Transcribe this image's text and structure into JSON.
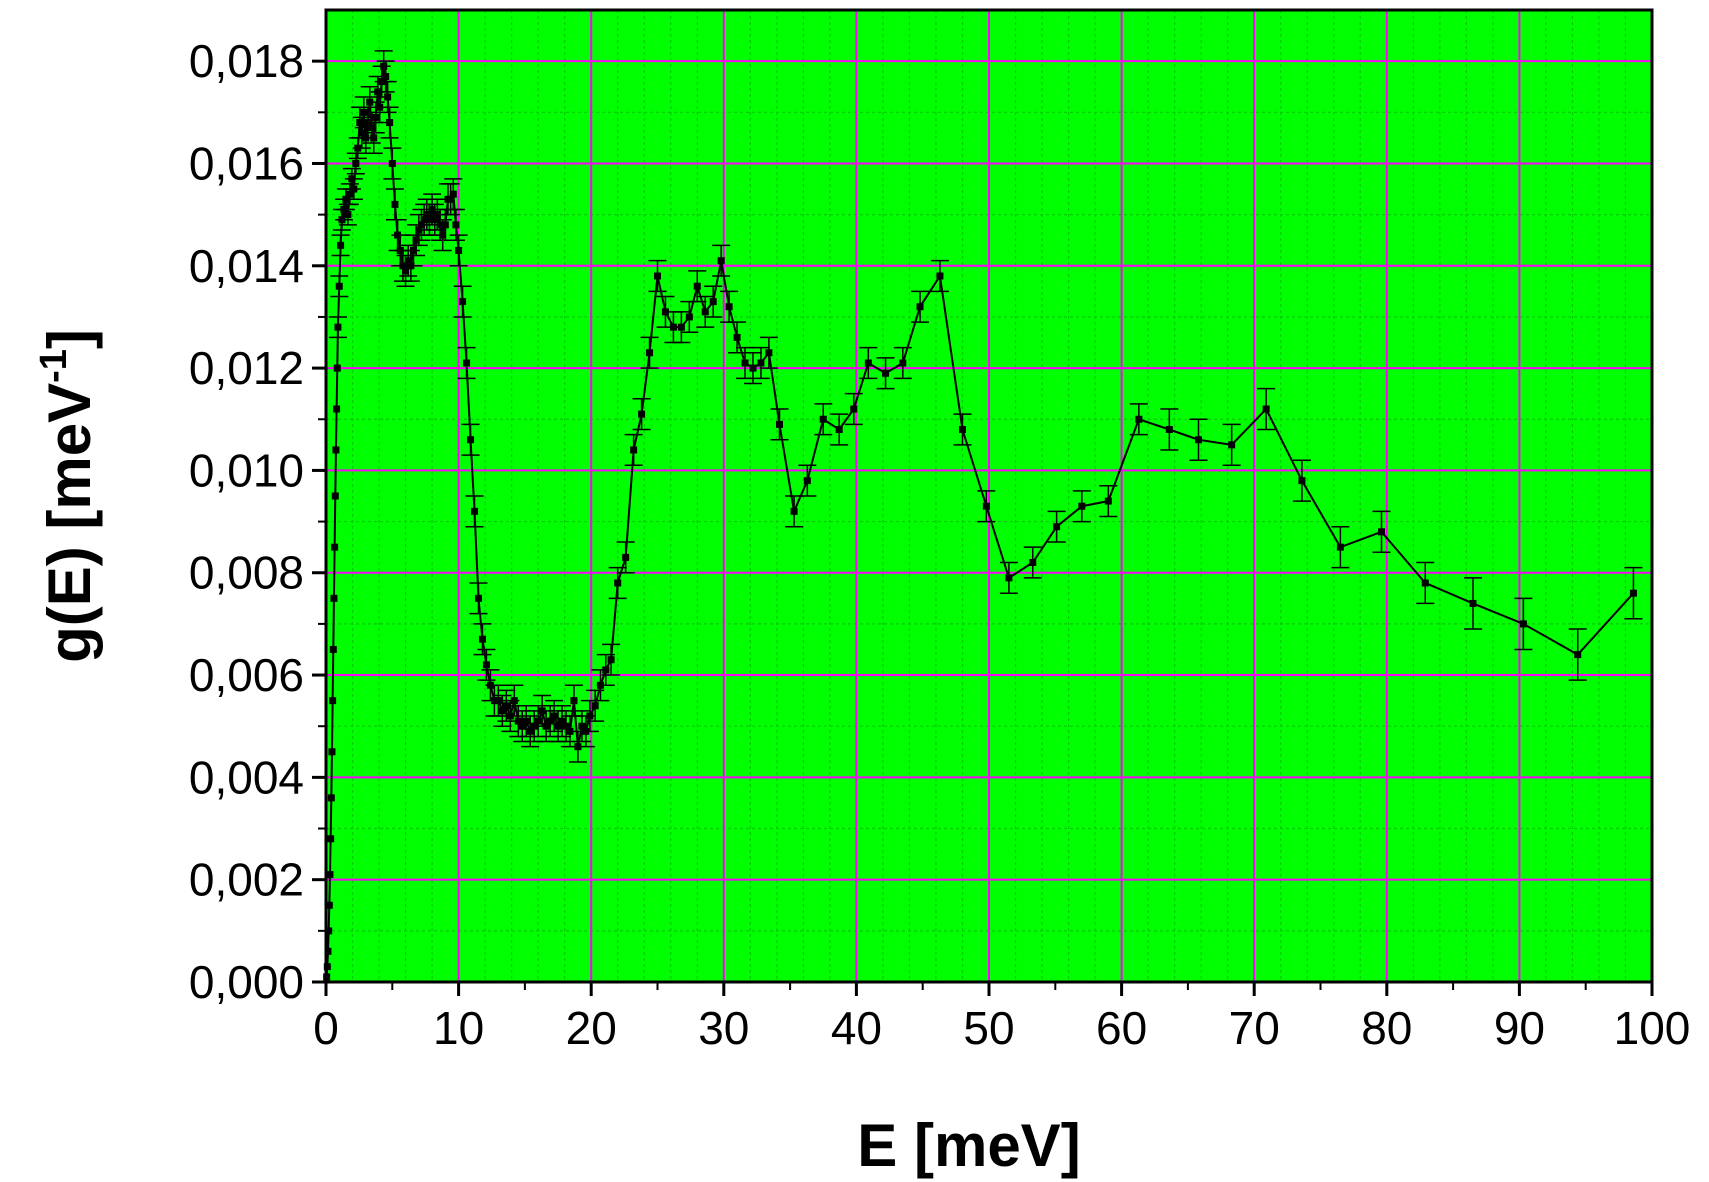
{
  "chart_data": {
    "type": "scatter",
    "xlabel": "E [meV]",
    "ylabel": "g(E) [meV-1]",
    "ylabel_parts": {
      "main": "g(E) [meV",
      "sup": "-1",
      "close": "]"
    },
    "xlim": [
      0,
      100
    ],
    "ylim": [
      0,
      0.019
    ],
    "x_ticks": [
      0,
      10,
      20,
      30,
      40,
      50,
      60,
      70,
      80,
      90,
      100
    ],
    "x_tick_labels": [
      "0",
      "10",
      "20",
      "30",
      "40",
      "50",
      "60",
      "70",
      "80",
      "90",
      "100"
    ],
    "y_ticks": [
      0,
      0.002,
      0.004,
      0.006,
      0.008,
      0.01,
      0.012,
      0.014,
      0.016,
      0.018
    ],
    "y_tick_labels": [
      "0,000",
      "0,002",
      "0,004",
      "0,006",
      "0,008",
      "0,010",
      "0,012",
      "0,014",
      "0,016",
      "0,018"
    ],
    "grid": {
      "major": true,
      "minor": true,
      "minor_x_step": 2,
      "minor_y_step": 0.001
    },
    "colors": {
      "major_grid": "#ff00ff",
      "minor_grid": "#00cc00",
      "background": "#00ff00",
      "data": "#000000"
    },
    "series": [
      {
        "points": [
          [
            0.05,
            0.0001,
            0
          ],
          [
            0.1,
            0.0003,
            0
          ],
          [
            0.15,
            0.0006,
            0
          ],
          [
            0.2,
            0.001,
            0
          ],
          [
            0.25,
            0.0015,
            0
          ],
          [
            0.3,
            0.0021,
            0
          ],
          [
            0.35,
            0.0028,
            0
          ],
          [
            0.4,
            0.0036,
            0
          ],
          [
            0.45,
            0.0045,
            0
          ],
          [
            0.5,
            0.0055,
            0
          ],
          [
            0.55,
            0.0065,
            0
          ],
          [
            0.6,
            0.0075,
            0
          ],
          [
            0.65,
            0.0085,
            0
          ],
          [
            0.7,
            0.0095,
            0
          ],
          [
            0.75,
            0.0104,
            0
          ],
          [
            0.8,
            0.0112,
            0
          ],
          [
            0.85,
            0.012,
            0
          ],
          [
            0.9,
            0.0128,
            0.0002
          ],
          [
            1.0,
            0.0136,
            0.0002
          ],
          [
            1.1,
            0.0144,
            0.0002
          ],
          [
            1.2,
            0.0149,
            0.0002
          ],
          [
            1.35,
            0.0151,
            0.0002
          ],
          [
            1.5,
            0.0153,
            0.0002
          ],
          [
            1.65,
            0.015,
            0.0002
          ],
          [
            1.8,
            0.0154,
            0.0002
          ],
          [
            1.95,
            0.0157,
            0.0002
          ],
          [
            2.1,
            0.0155,
            0.0002
          ],
          [
            2.25,
            0.016,
            0.0002
          ],
          [
            2.4,
            0.0163,
            0.0002
          ],
          [
            2.55,
            0.0168,
            0.0003
          ],
          [
            2.7,
            0.0166,
            0.0003
          ],
          [
            2.85,
            0.017,
            0.0003
          ],
          [
            3.0,
            0.0165,
            0.0003
          ],
          [
            3.15,
            0.0168,
            0.0003
          ],
          [
            3.3,
            0.0172,
            0.0003
          ],
          [
            3.45,
            0.0167,
            0.0003
          ],
          [
            3.6,
            0.0165,
            0.0003
          ],
          [
            3.75,
            0.0169,
            0.0003
          ],
          [
            3.9,
            0.0174,
            0.0003
          ],
          [
            4.05,
            0.0171,
            0.0003
          ],
          [
            4.2,
            0.0176,
            0.0003
          ],
          [
            4.35,
            0.0179,
            0.0003
          ],
          [
            4.5,
            0.0177,
            0.0003
          ],
          [
            4.65,
            0.0173,
            0.0003
          ],
          [
            4.8,
            0.0168,
            0.0003
          ],
          [
            5.0,
            0.016,
            0.0003
          ],
          [
            5.2,
            0.0152,
            0.0003
          ],
          [
            5.4,
            0.0146,
            0.0003
          ],
          [
            5.6,
            0.0143,
            0.0003
          ],
          [
            5.8,
            0.014,
            0.0003
          ],
          [
            6.0,
            0.0139,
            0.0003
          ],
          [
            6.2,
            0.0141,
            0.0003
          ],
          [
            6.4,
            0.014,
            0.0003
          ],
          [
            6.6,
            0.0143,
            0.0003
          ],
          [
            6.8,
            0.0145,
            0.0003
          ],
          [
            7.0,
            0.0147,
            0.0003
          ],
          [
            7.2,
            0.0148,
            0.0003
          ],
          [
            7.4,
            0.0149,
            0.0003
          ],
          [
            7.6,
            0.015,
            0.0003
          ],
          [
            7.8,
            0.0149,
            0.0003
          ],
          [
            8.0,
            0.0151,
            0.0003
          ],
          [
            8.2,
            0.0149,
            0.0003
          ],
          [
            8.4,
            0.015,
            0.0003
          ],
          [
            8.6,
            0.0148,
            0.0003
          ],
          [
            8.8,
            0.0146,
            0.0003
          ],
          [
            9.0,
            0.0148,
            0.0003
          ],
          [
            9.2,
            0.0153,
            0.0003
          ],
          [
            9.4,
            0.0153,
            0.0003
          ],
          [
            9.6,
            0.0154,
            0.0003
          ],
          [
            9.8,
            0.0148,
            0.0003
          ],
          [
            10.0,
            0.0143,
            0.0003
          ],
          [
            10.3,
            0.0133,
            0.0003
          ],
          [
            10.6,
            0.0121,
            0.0003
          ],
          [
            10.9,
            0.0106,
            0.0003
          ],
          [
            11.2,
            0.0092,
            0.0003
          ],
          [
            11.5,
            0.0075,
            0.0003
          ],
          [
            11.8,
            0.0067,
            0.0003
          ],
          [
            12.1,
            0.0062,
            0.0003
          ],
          [
            12.4,
            0.0058,
            0.0003
          ],
          [
            12.7,
            0.0055,
            0.0003
          ],
          [
            13.0,
            0.0055,
            0.0003
          ],
          [
            13.3,
            0.0053,
            0.0003
          ],
          [
            13.6,
            0.0054,
            0.0003
          ],
          [
            13.9,
            0.0052,
            0.0003
          ],
          [
            14.2,
            0.0055,
            0.0003
          ],
          [
            14.5,
            0.0051,
            0.0003
          ],
          [
            14.8,
            0.005,
            0.0003
          ],
          [
            15.1,
            0.0051,
            0.0003
          ],
          [
            15.4,
            0.0049,
            0.0003
          ],
          [
            15.7,
            0.005,
            0.0003
          ],
          [
            16.0,
            0.0051,
            0.0003
          ],
          [
            16.3,
            0.0053,
            0.0003
          ],
          [
            16.6,
            0.005,
            0.0003
          ],
          [
            16.9,
            0.0051,
            0.0003
          ],
          [
            17.2,
            0.0052,
            0.0003
          ],
          [
            17.5,
            0.005,
            0.0003
          ],
          [
            17.8,
            0.0051,
            0.0003
          ],
          [
            18.1,
            0.005,
            0.0003
          ],
          [
            18.4,
            0.0049,
            0.0003
          ],
          [
            18.7,
            0.0055,
            0.0003
          ],
          [
            19.0,
            0.0046,
            0.0003
          ],
          [
            19.3,
            0.005,
            0.0003
          ],
          [
            19.6,
            0.0049,
            0.0003
          ],
          [
            19.9,
            0.0052,
            0.0003
          ],
          [
            20.3,
            0.0054,
            0.0003
          ],
          [
            20.7,
            0.0058,
            0.0003
          ],
          [
            21.1,
            0.0061,
            0.0003
          ],
          [
            21.5,
            0.0063,
            0.0003
          ],
          [
            22.0,
            0.0078,
            0.0003
          ],
          [
            22.6,
            0.0083,
            0.0003
          ],
          [
            23.2,
            0.0104,
            0.0003
          ],
          [
            23.8,
            0.0111,
            0.0003
          ],
          [
            24.4,
            0.0123,
            0.0003
          ],
          [
            25.0,
            0.0138,
            0.0003
          ],
          [
            25.6,
            0.0131,
            0.0003
          ],
          [
            26.2,
            0.0128,
            0.0003
          ],
          [
            26.8,
            0.0128,
            0.0003
          ],
          [
            27.4,
            0.013,
            0.0003
          ],
          [
            28.0,
            0.0136,
            0.0003
          ],
          [
            28.6,
            0.0131,
            0.0003
          ],
          [
            29.2,
            0.0133,
            0.0003
          ],
          [
            29.8,
            0.0141,
            0.0003
          ],
          [
            30.4,
            0.0132,
            0.0003
          ],
          [
            31.0,
            0.0126,
            0.0003
          ],
          [
            31.6,
            0.0121,
            0.0003
          ],
          [
            32.2,
            0.012,
            0.0003
          ],
          [
            32.8,
            0.0121,
            0.0003
          ],
          [
            33.4,
            0.0123,
            0.0003
          ],
          [
            34.2,
            0.0109,
            0.0003
          ],
          [
            35.3,
            0.0092,
            0.0003
          ],
          [
            36.3,
            0.0098,
            0.0003
          ],
          [
            37.5,
            0.011,
            0.0003
          ],
          [
            38.7,
            0.0108,
            0.0003
          ],
          [
            39.8,
            0.0112,
            0.0003
          ],
          [
            40.9,
            0.0121,
            0.0003
          ],
          [
            42.2,
            0.0119,
            0.0003
          ],
          [
            43.5,
            0.0121,
            0.0003
          ],
          [
            44.8,
            0.0132,
            0.0003
          ],
          [
            46.3,
            0.0138,
            0.0003
          ],
          [
            48.0,
            0.0108,
            0.0003
          ],
          [
            49.8,
            0.0093,
            0.0003
          ],
          [
            51.5,
            0.0079,
            0.0003
          ],
          [
            53.3,
            0.0082,
            0.0003
          ],
          [
            55.1,
            0.0089,
            0.0003
          ],
          [
            57.0,
            0.0093,
            0.0003
          ],
          [
            59.0,
            0.0094,
            0.0003
          ],
          [
            61.3,
            0.011,
            0.0003
          ],
          [
            63.6,
            0.0108,
            0.0004
          ],
          [
            65.8,
            0.0106,
            0.0004
          ],
          [
            68.3,
            0.0105,
            0.0004
          ],
          [
            70.9,
            0.0112,
            0.0004
          ],
          [
            73.6,
            0.0098,
            0.0004
          ],
          [
            76.5,
            0.0085,
            0.0004
          ],
          [
            79.6,
            0.0088,
            0.0004
          ],
          [
            82.9,
            0.0078,
            0.0004
          ],
          [
            86.5,
            0.0074,
            0.0005
          ],
          [
            90.3,
            0.007,
            0.0005
          ],
          [
            94.4,
            0.0064,
            0.0005
          ],
          [
            98.6,
            0.0076,
            0.0005
          ]
        ]
      }
    ]
  }
}
